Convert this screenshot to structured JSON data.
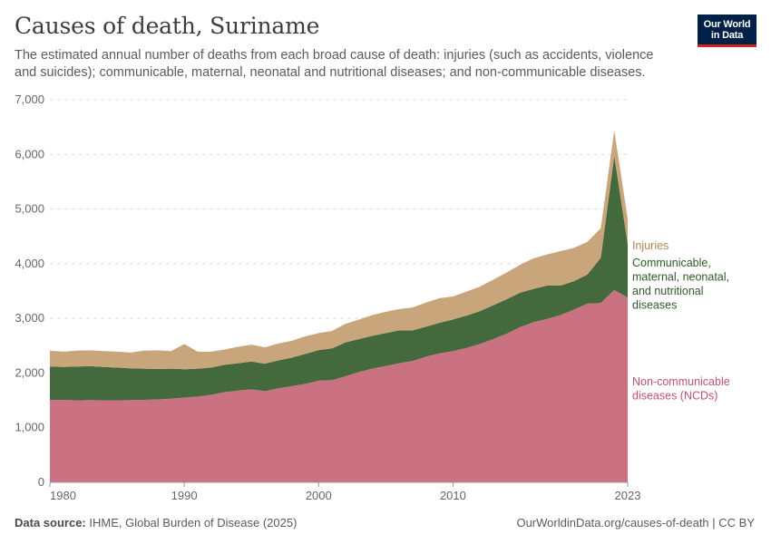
{
  "header": {
    "title": "Causes of death, Suriname",
    "subtitle": "The estimated annual number of deaths from each broad cause of death: injuries (such as accidents, violence and suicides); communicable, maternal, neonatal and nutritional diseases; and non-communicable diseases."
  },
  "logo": {
    "line1": "Our World",
    "line2": "in Data"
  },
  "footer": {
    "source_label": "Data source:",
    "source_text": "IHME, Global Burden of Disease (2025)",
    "url": "OurWorldinData.org/causes-of-death | CC BY"
  },
  "colors": {
    "ncd": "#cb7282",
    "communicable": "#44693d",
    "injuries": "#c9a57b",
    "grid": "#dddddd",
    "axis_text": "#666666"
  },
  "chart_data": {
    "type": "area",
    "stacked": true,
    "title": "Causes of death, Suriname",
    "x": [
      1980,
      1981,
      1982,
      1983,
      1984,
      1985,
      1986,
      1987,
      1988,
      1989,
      1990,
      1991,
      1992,
      1993,
      1994,
      1995,
      1996,
      1997,
      1998,
      1999,
      2000,
      2001,
      2002,
      2003,
      2004,
      2005,
      2006,
      2007,
      2008,
      2009,
      2010,
      2011,
      2012,
      2013,
      2014,
      2015,
      2016,
      2017,
      2018,
      2019,
      2020,
      2021,
      2022,
      2023
    ],
    "xlim": [
      1980,
      2023
    ],
    "ylim": [
      0,
      7000
    ],
    "x_ticks": [
      "1980",
      "1990",
      "2000",
      "2010",
      "2023"
    ],
    "x_tick_values": [
      1980,
      1990,
      2000,
      2010,
      2023
    ],
    "y_ticks": [
      "0",
      "1,000",
      "2,000",
      "3,000",
      "4,000",
      "5,000",
      "6,000",
      "7,000"
    ],
    "y_tick_values": [
      0,
      1000,
      2000,
      3000,
      4000,
      5000,
      6000,
      7000
    ],
    "grid": true,
    "legend": "right-inline",
    "series": [
      {
        "name": "Non-communicable diseases (NCDs)",
        "label_lines": [
          "Non-communicable",
          "diseases (NCDs)"
        ],
        "color": "#cb7282",
        "values": [
          1510,
          1510,
          1500,
          1505,
          1500,
          1500,
          1505,
          1510,
          1515,
          1530,
          1550,
          1570,
          1600,
          1650,
          1680,
          1700,
          1670,
          1720,
          1760,
          1800,
          1860,
          1870,
          1940,
          2020,
          2080,
          2130,
          2180,
          2220,
          2300,
          2360,
          2400,
          2460,
          2530,
          2620,
          2720,
          2840,
          2930,
          2990,
          3060,
          3160,
          3270,
          3280,
          3520,
          3380
        ]
      },
      {
        "name": "Communicable, maternal, neonatal, and nutritional diseases",
        "label_lines": [
          "Communicable,",
          "maternal, neonatal,",
          "and nutritional",
          "diseases"
        ],
        "color": "#44693d",
        "values": [
          610,
          600,
          620,
          620,
          610,
          600,
          580,
          570,
          560,
          550,
          520,
          510,
          500,
          500,
          500,
          510,
          500,
          510,
          520,
          550,
          560,
          580,
          620,
          600,
          600,
          600,
          600,
          560,
          550,
          560,
          580,
          590,
          600,
          620,
          630,
          630,
          610,
          610,
          540,
          520,
          530,
          830,
          2450,
          980
        ]
      },
      {
        "name": "Injuries",
        "label_lines": [
          "Injuries"
        ],
        "color": "#c9a57b",
        "values": [
          290,
          280,
          290,
          290,
          290,
          290,
          290,
          330,
          340,
          320,
          460,
          310,
          290,
          280,
          300,
          310,
          300,
          310,
          310,
          320,
          310,
          320,
          340,
          360,
          380,
          390,
          390,
          420,
          440,
          450,
          420,
          440,
          450,
          470,
          490,
          510,
          560,
          570,
          630,
          610,
          600,
          540,
          470,
          460
        ]
      }
    ]
  }
}
